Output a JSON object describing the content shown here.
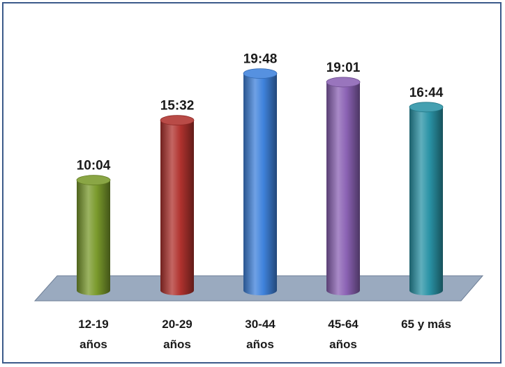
{
  "chart_data": {
    "type": "bar",
    "style": "3d-cylinder",
    "title": "",
    "xlabel": "",
    "ylabel": "",
    "categories": [
      [
        "12-19",
        "años"
      ],
      [
        "20-29",
        "años"
      ],
      [
        "30-44",
        "años"
      ],
      [
        "45-64",
        "años"
      ],
      [
        "65 y más"
      ]
    ],
    "values": [
      "10:04",
      "15:32",
      "19:48",
      "19:01",
      "16:44"
    ],
    "values_minutes": [
      604,
      932,
      1188,
      1141,
      1004
    ],
    "ylim_minutes": [
      0,
      1320
    ],
    "grid": false,
    "legend": "none",
    "colors": [
      "#7a9a2c",
      "#b0322e",
      "#3f82dc",
      "#8b62b4",
      "#2a93a6"
    ]
  }
}
